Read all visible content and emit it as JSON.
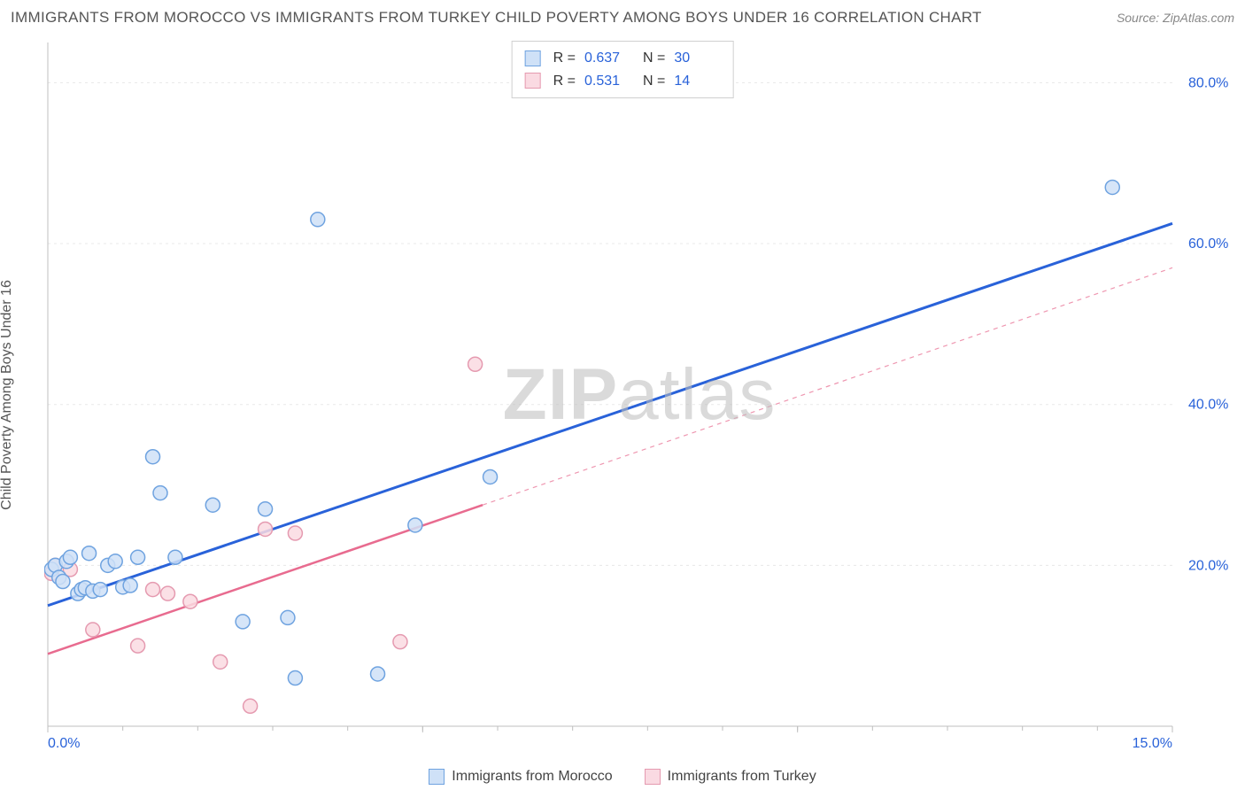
{
  "title": "IMMIGRANTS FROM MOROCCO VS IMMIGRANTS FROM TURKEY CHILD POVERTY AMONG BOYS UNDER 16 CORRELATION CHART",
  "source": "Source: ZipAtlas.com",
  "y_axis_label": "Child Poverty Among Boys Under 16",
  "watermark_bold": "ZIP",
  "watermark_rest": "atlas",
  "chart": {
    "type": "scatter",
    "xlim": [
      0,
      15
    ],
    "ylim": [
      0,
      85
    ],
    "x_ticks": [
      0,
      5,
      10,
      15
    ],
    "x_tick_labels": [
      "0.0%",
      "",
      "",
      "15.0%"
    ],
    "y_ticks": [
      20,
      40,
      60,
      80
    ],
    "y_tick_labels": [
      "20.0%",
      "40.0%",
      "60.0%",
      "80.0%"
    ],
    "background": "#ffffff",
    "grid_color": "#e8e8e8",
    "axis_color": "#bfbfbf",
    "marker_radius": 8,
    "marker_stroke_width": 1.5,
    "series": [
      {
        "name": "Immigrants from Morocco",
        "color_fill": "#cfe1f7",
        "color_stroke": "#6fa3e0",
        "trend_color": "#2962d9",
        "trend_width": 3,
        "trend_dash": "",
        "R": "0.637",
        "N": "30",
        "points": [
          [
            0.05,
            19.5
          ],
          [
            0.1,
            20.0
          ],
          [
            0.15,
            18.5
          ],
          [
            0.2,
            18.0
          ],
          [
            0.25,
            20.5
          ],
          [
            0.3,
            21.0
          ],
          [
            0.4,
            16.5
          ],
          [
            0.45,
            17.0
          ],
          [
            0.5,
            17.2
          ],
          [
            0.55,
            21.5
          ],
          [
            0.6,
            16.8
          ],
          [
            0.7,
            17.0
          ],
          [
            0.8,
            20.0
          ],
          [
            0.9,
            20.5
          ],
          [
            1.0,
            17.3
          ],
          [
            1.1,
            17.5
          ],
          [
            1.2,
            21.0
          ],
          [
            1.4,
            33.5
          ],
          [
            1.5,
            29.0
          ],
          [
            1.7,
            21.0
          ],
          [
            2.2,
            27.5
          ],
          [
            2.6,
            13.0
          ],
          [
            2.9,
            27.0
          ],
          [
            3.2,
            13.5
          ],
          [
            3.3,
            6.0
          ],
          [
            3.6,
            63.0
          ],
          [
            4.4,
            6.5
          ],
          [
            4.9,
            25.0
          ],
          [
            5.9,
            31.0
          ],
          [
            14.2,
            67.0
          ]
        ],
        "trend_line": {
          "x1": 0,
          "y1": 15.0,
          "x2": 15,
          "y2": 62.5
        }
      },
      {
        "name": "Immigrants from Turkey",
        "color_fill": "#fadae2",
        "color_stroke": "#e59ab0",
        "trend_color": "#e86b8f",
        "trend_width": 2.5,
        "trend_dash": "",
        "trend_dash_ext": "5 5",
        "R": "0.531",
        "N": "14",
        "points": [
          [
            0.05,
            19.0
          ],
          [
            0.1,
            20.0
          ],
          [
            0.6,
            12.0
          ],
          [
            1.2,
            10.0
          ],
          [
            1.4,
            17.0
          ],
          [
            1.6,
            16.5
          ],
          [
            1.9,
            15.5
          ],
          [
            2.3,
            8.0
          ],
          [
            2.7,
            2.5
          ],
          [
            2.9,
            24.5
          ],
          [
            3.3,
            24.0
          ],
          [
            4.7,
            10.5
          ],
          [
            5.7,
            45.0
          ],
          [
            0.3,
            19.5
          ]
        ],
        "trend_line": {
          "x1": 0,
          "y1": 9.0,
          "x2": 5.8,
          "y2": 27.5
        },
        "trend_ext": {
          "x1": 5.8,
          "y1": 27.5,
          "x2": 15,
          "y2": 57.0
        }
      }
    ]
  },
  "stats_labels": {
    "R": "R =",
    "N": "N ="
  },
  "legend": {
    "series1": "Immigrants from Morocco",
    "series2": "Immigrants from Turkey"
  }
}
